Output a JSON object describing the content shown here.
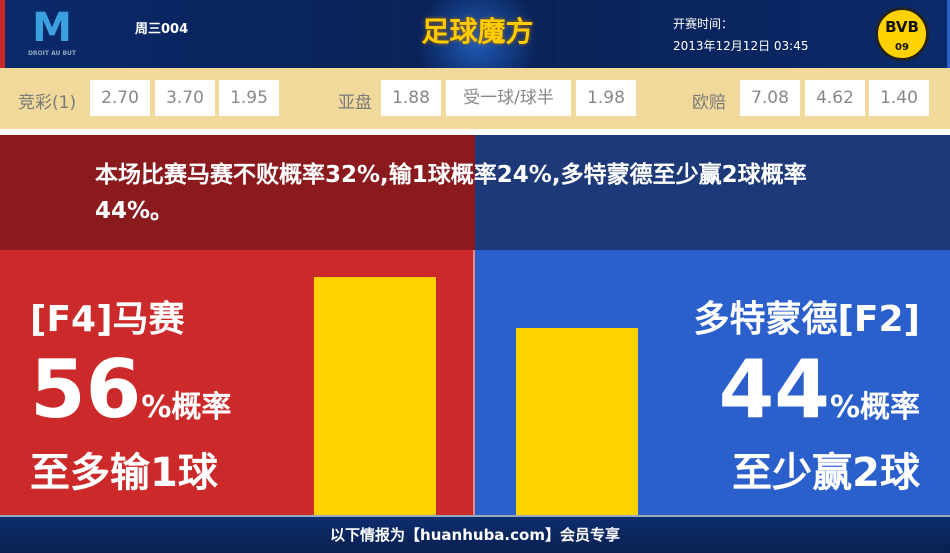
{
  "header": {
    "home_logo_text": "M",
    "home_logo_motto": "DROIT AU BUT",
    "match_no": "周三004",
    "brand": "足球魔方",
    "kickoff_label": "开赛时间：",
    "kickoff_value": "2013年12月12日 03:45",
    "away_logo_text": "BVB",
    "away_logo_sub": "09"
  },
  "odds": {
    "jc_label": "竞彩(1)",
    "jc": [
      "2.70",
      "3.70",
      "1.95"
    ],
    "asian_label": "亚盘",
    "asian": [
      "1.88",
      "受一球/球半",
      "1.98"
    ],
    "euro_label": "欧赔",
    "euro": [
      "7.08",
      "4.62",
      "1.40"
    ]
  },
  "summary": "本场比赛马赛不败概率32%,输1球概率24%,多特蒙德至少赢2球概率44%。",
  "home": {
    "name": "[F4]马赛",
    "pct": "56",
    "pct_suffix": "%概率",
    "outcome": "至多输1球",
    "value": 56
  },
  "away": {
    "name": "多特蒙德[F2]",
    "pct": "44",
    "pct_suffix": "%概率",
    "outcome": "至少赢2球",
    "value": 44
  },
  "colors": {
    "home": "#cc2a2a",
    "away": "#2a5fcc",
    "bar": "#ffd200"
  },
  "footer": "以下情报为【huanhuba.com】会员专享"
}
